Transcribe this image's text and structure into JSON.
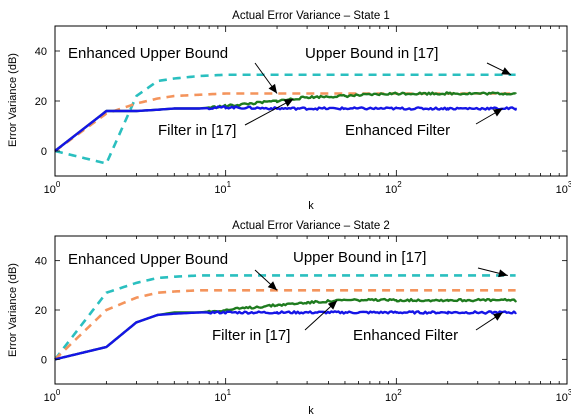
{
  "chart_data": [
    {
      "type": "line",
      "title": "Actual Error Variance – State 1",
      "xlabel": "k",
      "ylabel": "Error Variance (dB)",
      "xscale": "log",
      "xlim": [
        1,
        1000
      ],
      "ylim": [
        -10,
        50
      ],
      "x_ticks": [
        {
          "value": 1,
          "base": "10",
          "exp": "0"
        },
        {
          "value": 10,
          "base": "10",
          "exp": "1"
        },
        {
          "value": 100,
          "base": "10",
          "exp": "2"
        },
        {
          "value": 1000,
          "base": "10",
          "exp": "3"
        }
      ],
      "y_ticks": [
        0,
        20,
        40
      ],
      "grid": false,
      "series": [
        {
          "name": "Upper Bound in [17]",
          "color": "#2ABFBF",
          "style": "dashed",
          "x": [
            1,
            2,
            3,
            4,
            5,
            7,
            10,
            20,
            50,
            100,
            200,
            500
          ],
          "y": [
            0,
            -5,
            22,
            28,
            29,
            30,
            30.5,
            30.5,
            30.5,
            30.5,
            30.5,
            30.5
          ]
        },
        {
          "name": "Enhanced Upper Bound",
          "color": "#F4945C",
          "style": "dashed",
          "x": [
            1,
            2,
            3,
            4,
            5,
            7,
            10,
            20,
            50,
            100,
            200,
            500
          ],
          "y": [
            0,
            15,
            19,
            21,
            22,
            22.5,
            23,
            23,
            23,
            23,
            23,
            23
          ]
        },
        {
          "name": "Filter in [17]",
          "color": "#1E7B1E",
          "style": "solid",
          "x": [
            1,
            2,
            3,
            4,
            5,
            7,
            10,
            20,
            30,
            50,
            100,
            200,
            500
          ],
          "y": [
            0,
            16,
            16,
            16.5,
            17,
            17,
            18,
            20,
            21.5,
            22,
            23,
            23,
            23
          ]
        },
        {
          "name": "Enhanced Filter",
          "color": "#1515E6",
          "style": "solid",
          "x": [
            1,
            2,
            3,
            4,
            5,
            7,
            10,
            20,
            50,
            100,
            200,
            500
          ],
          "y": [
            0,
            16,
            16,
            16.5,
            17,
            17,
            17.5,
            17,
            17,
            17,
            17,
            17
          ]
        }
      ],
      "annotations": [
        {
          "text": "Enhanced Upper Bound",
          "points_to": "Enhanced Upper Bound"
        },
        {
          "text": "Upper Bound in [17]",
          "points_to": "Upper Bound in [17]"
        },
        {
          "text": "Filter in [17]",
          "points_to": "Filter in [17]"
        },
        {
          "text": "Enhanced Filter",
          "points_to": "Enhanced Filter"
        }
      ]
    },
    {
      "type": "line",
      "title": "Actual Error Variance – State 2",
      "xlabel": "k",
      "ylabel": "Error Variance (dB)",
      "xscale": "log",
      "xlim": [
        1,
        1000
      ],
      "ylim": [
        -10,
        50
      ],
      "x_ticks": [
        {
          "value": 1,
          "base": "10",
          "exp": "0"
        },
        {
          "value": 10,
          "base": "10",
          "exp": "1"
        },
        {
          "value": 100,
          "base": "10",
          "exp": "2"
        },
        {
          "value": 1000,
          "base": "10",
          "exp": "3"
        }
      ],
      "y_ticks": [
        0,
        20,
        40
      ],
      "grid": false,
      "series": [
        {
          "name": "Upper Bound in [17]",
          "color": "#2ABFBF",
          "style": "dashed",
          "x": [
            1,
            2,
            3,
            4,
            5,
            7,
            10,
            20,
            50,
            100,
            200,
            500
          ],
          "y": [
            0,
            27,
            31,
            33,
            33.5,
            34,
            34,
            34,
            34,
            34,
            34,
            34
          ]
        },
        {
          "name": "Enhanced Upper Bound",
          "color": "#F4945C",
          "style": "dashed",
          "x": [
            1,
            2,
            3,
            4,
            5,
            7,
            10,
            20,
            50,
            100,
            200,
            500
          ],
          "y": [
            0,
            20,
            25,
            27,
            27.5,
            28,
            28,
            28,
            28,
            28,
            28,
            28
          ]
        },
        {
          "name": "Filter in [17]",
          "color": "#1E7B1E",
          "style": "solid",
          "x": [
            1,
            2,
            3,
            4,
            5,
            7,
            10,
            20,
            30,
            50,
            100,
            200,
            500
          ],
          "y": [
            0,
            5,
            15,
            18,
            19,
            19,
            20,
            22,
            23,
            24,
            24,
            24,
            24
          ]
        },
        {
          "name": "Enhanced Filter",
          "color": "#1515E6",
          "style": "solid",
          "x": [
            1,
            2,
            3,
            4,
            5,
            7,
            10,
            20,
            50,
            100,
            200,
            500
          ],
          "y": [
            0,
            5,
            15,
            18,
            18.5,
            19,
            19,
            19,
            19,
            19,
            19,
            19
          ]
        }
      ],
      "annotations": [
        {
          "text": "Enhanced Upper Bound",
          "points_to": "Enhanced Upper Bound"
        },
        {
          "text": "Upper Bound in [17]",
          "points_to": "Upper Bound in [17]"
        },
        {
          "text": "Filter in [17]",
          "points_to": "Filter in [17]"
        },
        {
          "text": "Enhanced Filter",
          "points_to": "Enhanced Filter"
        }
      ]
    }
  ]
}
